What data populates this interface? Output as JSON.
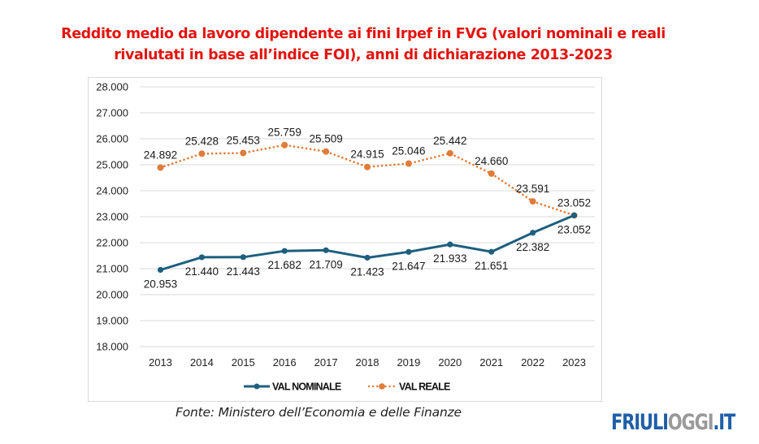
{
  "title": {
    "line1": "Reddito medio da lavoro dipendente ai fini Irpef in FVG (valori nominali e reali",
    "line2": "rivalutati in base all’indice FOI), anni di dichiarazione 2013-2023"
  },
  "source": "Fonte: Ministero dell’Economia e delle Finanze",
  "logo": {
    "part1": "FRIULI",
    "part2": "OGGI",
    "part3": ".IT",
    "color1": "#1f5fa8",
    "color2": "#9a9a9a"
  },
  "chart_data": {
    "type": "line",
    "title": "Reddito medio da lavoro dipendente ai fini Irpef in FVG (valori nominali e reali rivalutati in base all’indice FOI), anni di dichiarazione 2013-2023",
    "xlabel": "",
    "ylabel": "",
    "categories": [
      "2013",
      "2014",
      "2015",
      "2016",
      "2017",
      "2018",
      "2019",
      "2020",
      "2021",
      "2022",
      "2023"
    ],
    "ylim": [
      18000,
      28000
    ],
    "yticks": [
      18000,
      19000,
      20000,
      21000,
      22000,
      23000,
      24000,
      25000,
      26000,
      27000,
      28000
    ],
    "ytick_labels": [
      "18.000",
      "19.000",
      "20.000",
      "21.000",
      "22.000",
      "23.000",
      "24.000",
      "25.000",
      "26.000",
      "27.000",
      "28.000"
    ],
    "grid": true,
    "legend": "bottom",
    "series": [
      {
        "name": "VAL NOMINALE",
        "color": "#1d5f7e",
        "style": "solid",
        "values": [
          20953,
          21440,
          21443,
          21682,
          21709,
          21423,
          21647,
          21933,
          21651,
          22382,
          23052
        ],
        "labels": [
          "20.953",
          "21.440",
          "21.443",
          "21.682",
          "21.709",
          "21.423",
          "21.647",
          "21.933",
          "21.651",
          "22.382",
          "23.052"
        ],
        "label_position": "below"
      },
      {
        "name": "VAL REALE",
        "color": "#e07b39",
        "style": "dotted",
        "values": [
          24892,
          25428,
          25453,
          25759,
          25509,
          24915,
          25046,
          25442,
          24660,
          23591,
          23052
        ],
        "labels": [
          "24.892",
          "25.428",
          "25.453",
          "25.759",
          "25.509",
          "24.915",
          "25.046",
          "25.442",
          "24.660",
          "23.591",
          "23.052"
        ],
        "label_position": "above"
      }
    ]
  }
}
